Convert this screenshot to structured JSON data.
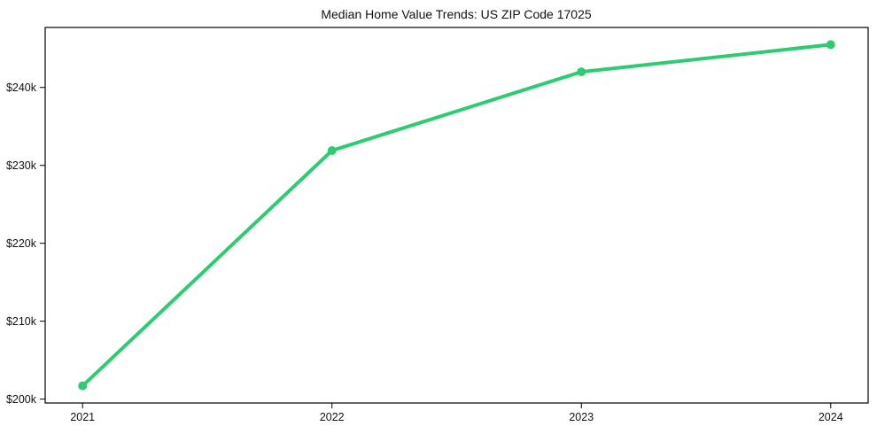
{
  "chart_data": {
    "type": "line",
    "title": "Median Home Value Trends: US ZIP Code 17025",
    "xlabel": "",
    "ylabel": "",
    "x": [
      2021,
      2022,
      2023,
      2024
    ],
    "x_tick_labels": [
      "2021",
      "2022",
      "2023",
      "2024"
    ],
    "series": [
      {
        "name": "median-home-value",
        "values": [
          201700,
          231900,
          242000,
          245500
        ],
        "color": "#2ecc71",
        "line_width": 4,
        "marker": "circle",
        "marker_radius": 5
      }
    ],
    "y_ticks": [
      200000,
      210000,
      220000,
      230000,
      240000
    ],
    "y_tick_labels": [
      "$200k",
      "$210k",
      "$220k",
      "$230k",
      "$240k"
    ],
    "xlim": [
      2020.85,
      2024.15
    ],
    "ylim": [
      199500,
      247700
    ],
    "grid": false,
    "legend": "none",
    "frame_color": "#000000",
    "tick_color": "#000000",
    "background_color": "#ffffff",
    "text_color": "#111111"
  }
}
